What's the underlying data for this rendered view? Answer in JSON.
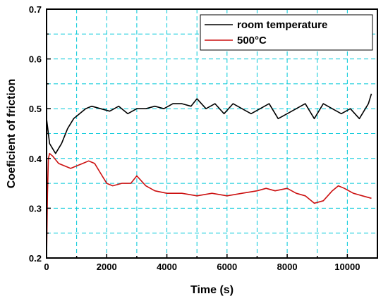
{
  "chart_data": {
    "type": "line",
    "xlabel": "Time (s)",
    "ylabel": "Coeficient of friction",
    "xlim": [
      0,
      11000
    ],
    "ylim": [
      0.2,
      0.7
    ],
    "xticks": [
      0,
      2000,
      4000,
      6000,
      8000,
      10000
    ],
    "yticks": [
      0.2,
      0.3,
      0.4,
      0.5,
      0.6,
      0.7
    ],
    "grid": true,
    "grid_color": "#00c8d8",
    "legend_position": "top-right",
    "series": [
      {
        "name": "room temperature",
        "color": "#000000",
        "x": [
          0,
          100,
          200,
          300,
          500,
          700,
          900,
          1100,
          1300,
          1500,
          1800,
          2100,
          2400,
          2700,
          3000,
          3300,
          3600,
          3900,
          4200,
          4500,
          4800,
          5000,
          5300,
          5600,
          5900,
          6200,
          6500,
          6800,
          7100,
          7400,
          7700,
          8000,
          8300,
          8600,
          8900,
          9200,
          9500,
          9800,
          10100,
          10400,
          10700,
          10800
        ],
        "y": [
          0.48,
          0.43,
          0.42,
          0.41,
          0.43,
          0.46,
          0.48,
          0.49,
          0.5,
          0.505,
          0.5,
          0.495,
          0.505,
          0.49,
          0.5,
          0.5,
          0.505,
          0.5,
          0.51,
          0.51,
          0.505,
          0.52,
          0.5,
          0.51,
          0.49,
          0.51,
          0.5,
          0.49,
          0.5,
          0.51,
          0.48,
          0.49,
          0.5,
          0.51,
          0.48,
          0.51,
          0.5,
          0.49,
          0.5,
          0.48,
          0.51,
          0.53
        ]
      },
      {
        "name": "500°C",
        "color": "#cc1111",
        "x": [
          0,
          30,
          60,
          100,
          200,
          400,
          600,
          800,
          1000,
          1200,
          1400,
          1600,
          1800,
          2000,
          2200,
          2500,
          2800,
          3000,
          3300,
          3600,
          4000,
          4500,
          5000,
          5500,
          6000,
          6500,
          7000,
          7300,
          7600,
          8000,
          8300,
          8600,
          8900,
          9200,
          9500,
          9700,
          9900,
          10200,
          10500,
          10800
        ],
        "y": [
          0.2,
          0.33,
          0.4,
          0.41,
          0.405,
          0.39,
          0.385,
          0.38,
          0.385,
          0.39,
          0.395,
          0.39,
          0.37,
          0.35,
          0.345,
          0.35,
          0.35,
          0.365,
          0.345,
          0.335,
          0.33,
          0.33,
          0.325,
          0.33,
          0.325,
          0.33,
          0.335,
          0.34,
          0.335,
          0.34,
          0.33,
          0.325,
          0.31,
          0.315,
          0.335,
          0.345,
          0.34,
          0.33,
          0.325,
          0.32
        ]
      }
    ]
  }
}
